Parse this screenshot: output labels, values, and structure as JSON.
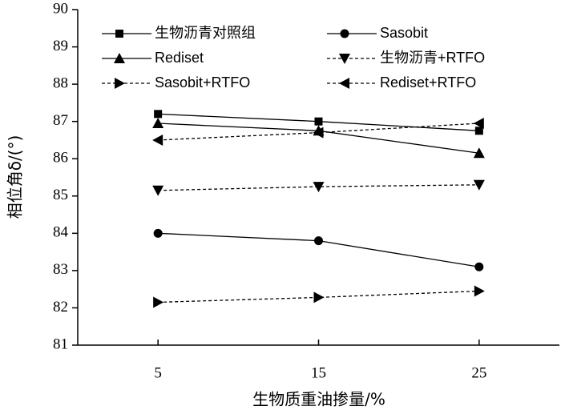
{
  "chart_data": {
    "type": "line",
    "x_label": "生物质重油掺量/%",
    "y_label": "相位角δ/(°)",
    "x": [
      5,
      15,
      25
    ],
    "xlim": [
      0,
      30
    ],
    "xticks": [
      5,
      15,
      25
    ],
    "ylim": [
      81,
      90
    ],
    "yticks": [
      81,
      82,
      83,
      84,
      85,
      86,
      87,
      88,
      89,
      90
    ],
    "series": [
      {
        "name": "生物沥青对照组",
        "color": "#000000",
        "marker": "square",
        "dashed": false,
        "values": [
          87.2,
          87.0,
          86.75
        ]
      },
      {
        "name": "Sasobit",
        "color": "#000000",
        "marker": "circle",
        "dashed": false,
        "values": [
          84.0,
          83.8,
          83.1
        ]
      },
      {
        "name": "Rediset",
        "color": "#000000",
        "marker": "triangle-up",
        "dashed": false,
        "values": [
          86.95,
          86.75,
          86.15
        ]
      },
      {
        "name": "生物沥青+RTFO",
        "color": "#000000",
        "marker": "triangle-down",
        "dashed": true,
        "values": [
          85.15,
          85.25,
          85.3
        ]
      },
      {
        "name": "Sasobit+RTFO",
        "color": "#000000",
        "marker": "triangle-right",
        "dashed": true,
        "values": [
          82.15,
          82.28,
          82.45
        ]
      },
      {
        "name": "Rediset+RTFO",
        "color": "#000000",
        "marker": "triangle-left",
        "dashed": true,
        "values": [
          86.5,
          86.7,
          86.95
        ]
      }
    ]
  }
}
